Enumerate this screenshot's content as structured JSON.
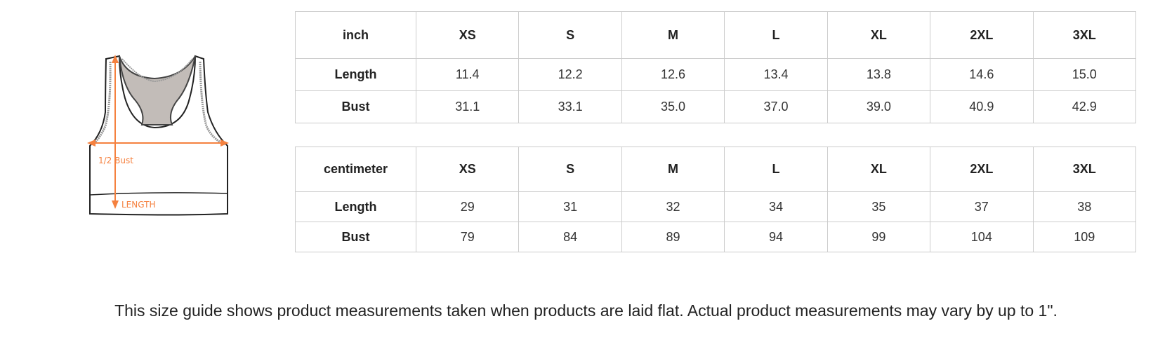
{
  "figure": {
    "bust_label": "1/2  Bust",
    "length_label": "LENGTH",
    "accent_color": "#f5813f"
  },
  "inch_table": {
    "unit": "inch",
    "sizes": [
      "XS",
      "S",
      "M",
      "L",
      "XL",
      "2XL",
      "3XL"
    ],
    "rows": [
      {
        "label": "Length",
        "values": [
          "11.4",
          "12.2",
          "12.6",
          "13.4",
          "13.8",
          "14.6",
          "15.0"
        ]
      },
      {
        "label": "Bust",
        "values": [
          "31.1",
          "33.1",
          "35.0",
          "37.0",
          "39.0",
          "40.9",
          "42.9"
        ]
      }
    ]
  },
  "cm_table": {
    "unit": "centimeter",
    "sizes": [
      "XS",
      "S",
      "M",
      "L",
      "XL",
      "2XL",
      "3XL"
    ],
    "rows": [
      {
        "label": "Length",
        "values": [
          "29",
          "31",
          "32",
          "34",
          "35",
          "37",
          "38"
        ]
      },
      {
        "label": "Bust",
        "values": [
          "79",
          "84",
          "89",
          "94",
          "99",
          "104",
          "109"
        ]
      }
    ]
  },
  "note": "This size guide shows product measurements taken when products are laid flat. Actual product measurements may vary by up to 1\"."
}
